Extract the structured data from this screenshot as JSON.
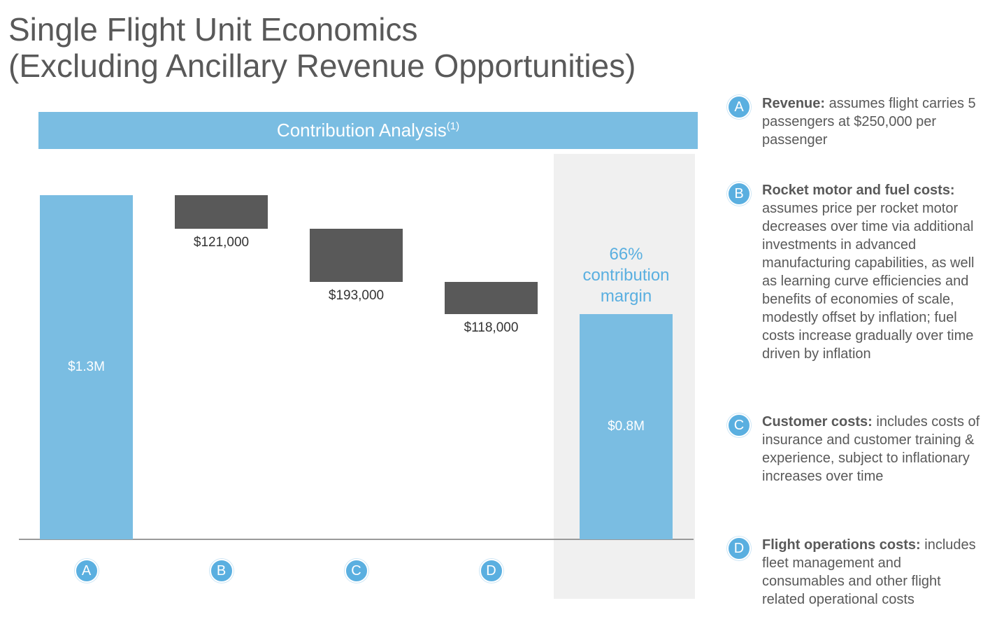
{
  "chart_data": {
    "type": "waterfall",
    "title": "Single Flight Unit Economics",
    "subtitle": "(Excluding Ancillary Revenue Opportunities)",
    "banner": "Contribution Analysis",
    "banner_note": "(1)",
    "categories": [
      "A",
      "B",
      "C",
      "D",
      null
    ],
    "values": [
      1250000,
      -121000,
      -193000,
      -118000,
      818000
    ],
    "value_labels": [
      "$1.3M",
      "$121,000",
      "$193,000",
      "$118,000",
      "$0.8M"
    ],
    "increase_color": "#7abde2",
    "decrease_color": "#595959",
    "annotation": "66% contribution margin"
  },
  "notes": [
    {
      "letter": "A",
      "heading": "Revenue:",
      "text": "assumes flight carries 5 passengers at $250,000 per passenger"
    },
    {
      "letter": "B",
      "heading": "Rocket motor and fuel costs:",
      "text": "assumes price per rocket motor decreases over time via additional investments in advanced manufacturing capabilities, as well as learning curve efficiencies and benefits of economies of scale, modestly offset by inflation; fuel costs increase gradually over time driven by inflation"
    },
    {
      "letter": "C",
      "heading": "Customer costs:",
      "text": "includes costs of insurance and customer training & experience, subject to inflationary increases over time"
    },
    {
      "letter": "D",
      "heading": "Flight operations costs:",
      "text": "includes fleet management and consumables and other flight related operational costs"
    }
  ]
}
